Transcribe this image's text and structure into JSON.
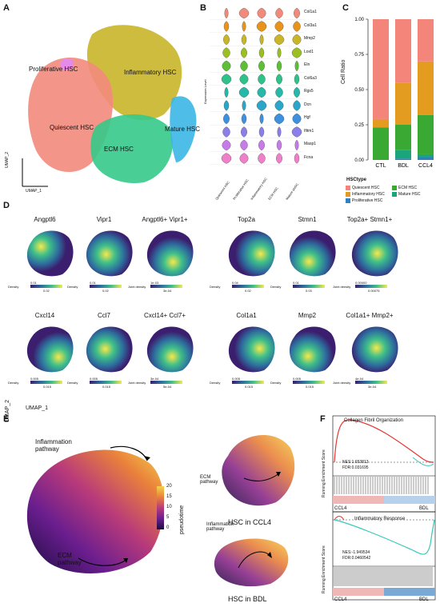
{
  "panels": {
    "A": {
      "letter": "A",
      "labels": [
        "Proliferative HSC",
        "Inflammatory HSC",
        "Quiescent HSC",
        "Mature HSC",
        "ECM HSC"
      ],
      "axis_x": "UMAP_1",
      "axis_y": "UMAP_2",
      "colors": {
        "quiescent": "#f28a7c",
        "inflammatory": "#c9b52a",
        "ecm": "#35c98a",
        "mature": "#3bb6e6",
        "proliferative": "#e58ae8"
      }
    },
    "B": {
      "letter": "B",
      "ylabel": "Expression Level",
      "genes": [
        "Col1a1",
        "Col3a1",
        "Mmp2",
        "Loxl1",
        "Eln",
        "Col6a3",
        "Rgs5",
        "Dcn",
        "Hgf",
        "Ifitm1",
        "Masp1",
        "Fcna"
      ],
      "gene_colors": [
        "#f28a7c",
        "#e8931a",
        "#c9b52a",
        "#9bbf22",
        "#5dbf36",
        "#2fc18a",
        "#26b8a8",
        "#2aa6c8",
        "#3d8fe0",
        "#8a7ee8",
        "#c77be6",
        "#ee7fc9"
      ],
      "celltypes": [
        "Quiescent HSC",
        "Proliferative HSC",
        "Inflammatory HSC",
        "ECM HSC",
        "Mature aHSC"
      ]
    },
    "C": {
      "letter": "C",
      "ylabel": "Cell Ratio",
      "legend_title": "HSCtype",
      "legend": [
        {
          "name": "Quiescent HSC",
          "color": "#f4857a"
        },
        {
          "name": "ECM HSC",
          "color": "#3aa933"
        },
        {
          "name": "Inflammatory HSC",
          "color": "#e39c1f"
        },
        {
          "name": "Mature HSC",
          "color": "#1aa57a"
        },
        {
          "name": "Proliferative HSC",
          "color": "#2f7fc1"
        }
      ]
    },
    "D": {
      "letter": "D",
      "axis_x": "UMAP_1",
      "axis_y": "UMAP_2",
      "plots": [
        {
          "title": "Angptl6",
          "legend": "Density",
          "ticks": [
            "0.01",
            "0.02"
          ]
        },
        {
          "title": "Vipr1",
          "legend": "Density",
          "ticks": [
            "0.01",
            "0.02"
          ]
        },
        {
          "title": "Angptl6+ Vipr1+",
          "legend": "Joint density",
          "ticks": [
            "1e-03",
            "3e-04"
          ]
        },
        {
          "title": "Top2a",
          "legend": "Density",
          "ticks": [
            "0.04",
            "0.02"
          ]
        },
        {
          "title": "Stmn1",
          "legend": "Density",
          "ticks": [
            "0.01",
            "0.03"
          ]
        },
        {
          "title": "Top2a+ Stmn1+",
          "legend": "Joint density",
          "ticks": [
            "0.00000",
            "0.00075"
          ]
        },
        {
          "title": "Cxcl14",
          "legend": "Density",
          "ticks": [
            "0.005",
            "0.015"
          ]
        },
        {
          "title": "Ccl7",
          "legend": "Density",
          "ticks": [
            "0.005",
            "0.015"
          ]
        },
        {
          "title": "Cxcl14+ Ccl7+",
          "legend": "Joint density",
          "ticks": [
            "3e-04",
            "5e-04"
          ]
        },
        {
          "title": "Col1a1",
          "legend": "Density",
          "ticks": [
            "0.005",
            "0.015"
          ]
        },
        {
          "title": "Mmp2",
          "legend": "Density",
          "ticks": [
            "0.005",
            "0.015"
          ]
        },
        {
          "title": "Col1a1+ Mmp2+",
          "legend": "Joint density",
          "ticks": [
            "4e-04",
            "3e-04"
          ]
        }
      ]
    },
    "E": {
      "letter": "E",
      "inflammation": "Inflammation pathway",
      "ecm": "ECM pathway",
      "pseudotime": "pseudotime",
      "ticks": [
        "20",
        "15",
        "10",
        "5",
        "0"
      ],
      "ccl4_caption": "HSC in CCL4",
      "bdl_caption": "HSC in BDL",
      "ecm_small": "ECM pathway",
      "inflammation_small": "Inflammation pathway"
    },
    "F": {
      "letter": "F",
      "top": {
        "title": "Collagen Fibril Organization",
        "nes": "NES:1.653813",
        "fdr": "FDR:0.031695",
        "left": "CCL4",
        "right": "BDL"
      },
      "bottom": {
        "title": "Inflammatory Response",
        "nes": "NES:-1.949534",
        "fdr": "FDR:0.0460542",
        "left": "CCL4",
        "right": "BDL"
      },
      "ylabel": "Running Enrichment Score"
    }
  },
  "chart_data": [
    {
      "type": "bar",
      "title": "",
      "xlabel": "",
      "ylabel": "Cell Ratio",
      "categories": [
        "CTL",
        "BDL",
        "CCL4"
      ],
      "ylim": [
        0,
        1
      ],
      "series": [
        {
          "name": "Proliferative HSC",
          "values": [
            0.0,
            0.01,
            0.02
          ]
        },
        {
          "name": "Mature HSC",
          "values": [
            0.0,
            0.06,
            0.02
          ]
        },
        {
          "name": "ECM HSC",
          "values": [
            0.23,
            0.18,
            0.28
          ]
        },
        {
          "name": "Inflammatory HSC",
          "values": [
            0.06,
            0.3,
            0.38
          ]
        },
        {
          "name": "Quiescent HSC",
          "values": [
            0.71,
            0.45,
            0.3
          ]
        }
      ],
      "yticks": [
        "0.00",
        "0.25",
        "0.50",
        "0.75",
        "1.00"
      ]
    }
  ]
}
